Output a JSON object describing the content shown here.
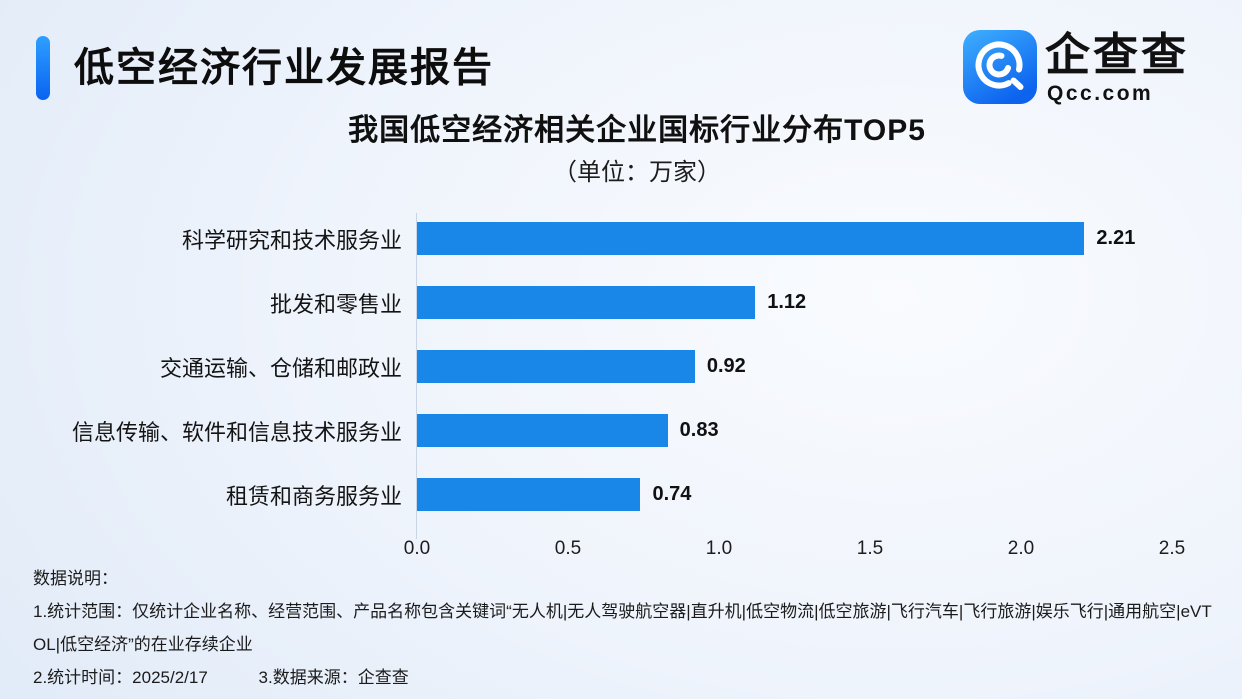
{
  "header": {
    "title": "低空经济行业发展报告",
    "logo": {
      "brand": "企查查",
      "domain": "Qcc.com"
    }
  },
  "chart": {
    "title": "我国低空经济相关企业国标行业分布TOP5",
    "subtitle": "（单位：万家）"
  },
  "chart_data": {
    "type": "bar",
    "orientation": "horizontal",
    "title": "我国低空经济相关企业国标行业分布TOP5",
    "unit": "万家",
    "categories": [
      "科学研究和技术服务业",
      "批发和零售业",
      "交通运输、仓储和邮政业",
      "信息传输、软件和信息技术服务业",
      "租赁和商务服务业"
    ],
    "values": [
      2.21,
      1.12,
      0.92,
      0.83,
      0.74
    ],
    "xlabel": "",
    "ylabel": "",
    "xlim": [
      0,
      2.5
    ],
    "x_ticks": [
      "0.0",
      "0.5",
      "1.0",
      "1.5",
      "2.0",
      "2.5"
    ],
    "grid": false,
    "legend": false,
    "bar_color": "#1987e7"
  },
  "footer": {
    "heading": "数据说明：",
    "note_scope": "1.统计范围：仅统计企业名称、经营范围、产品名称包含关键词“无人机|无人驾驶航空器|直升机|低空物流|低空旅游|飞行汽车|飞行旅游|娱乐飞行|通用航空|eVTOL|低空经济”的在业存续企业",
    "note_time": "2.统计时间：2025/2/17",
    "note_source": "3.数据来源：企查查"
  },
  "colors": {
    "bar": "#1987e7",
    "accent_gradient_top": "#2e9fff",
    "accent_gradient_bottom": "#0a63f1",
    "background": "#e9f0fa"
  }
}
